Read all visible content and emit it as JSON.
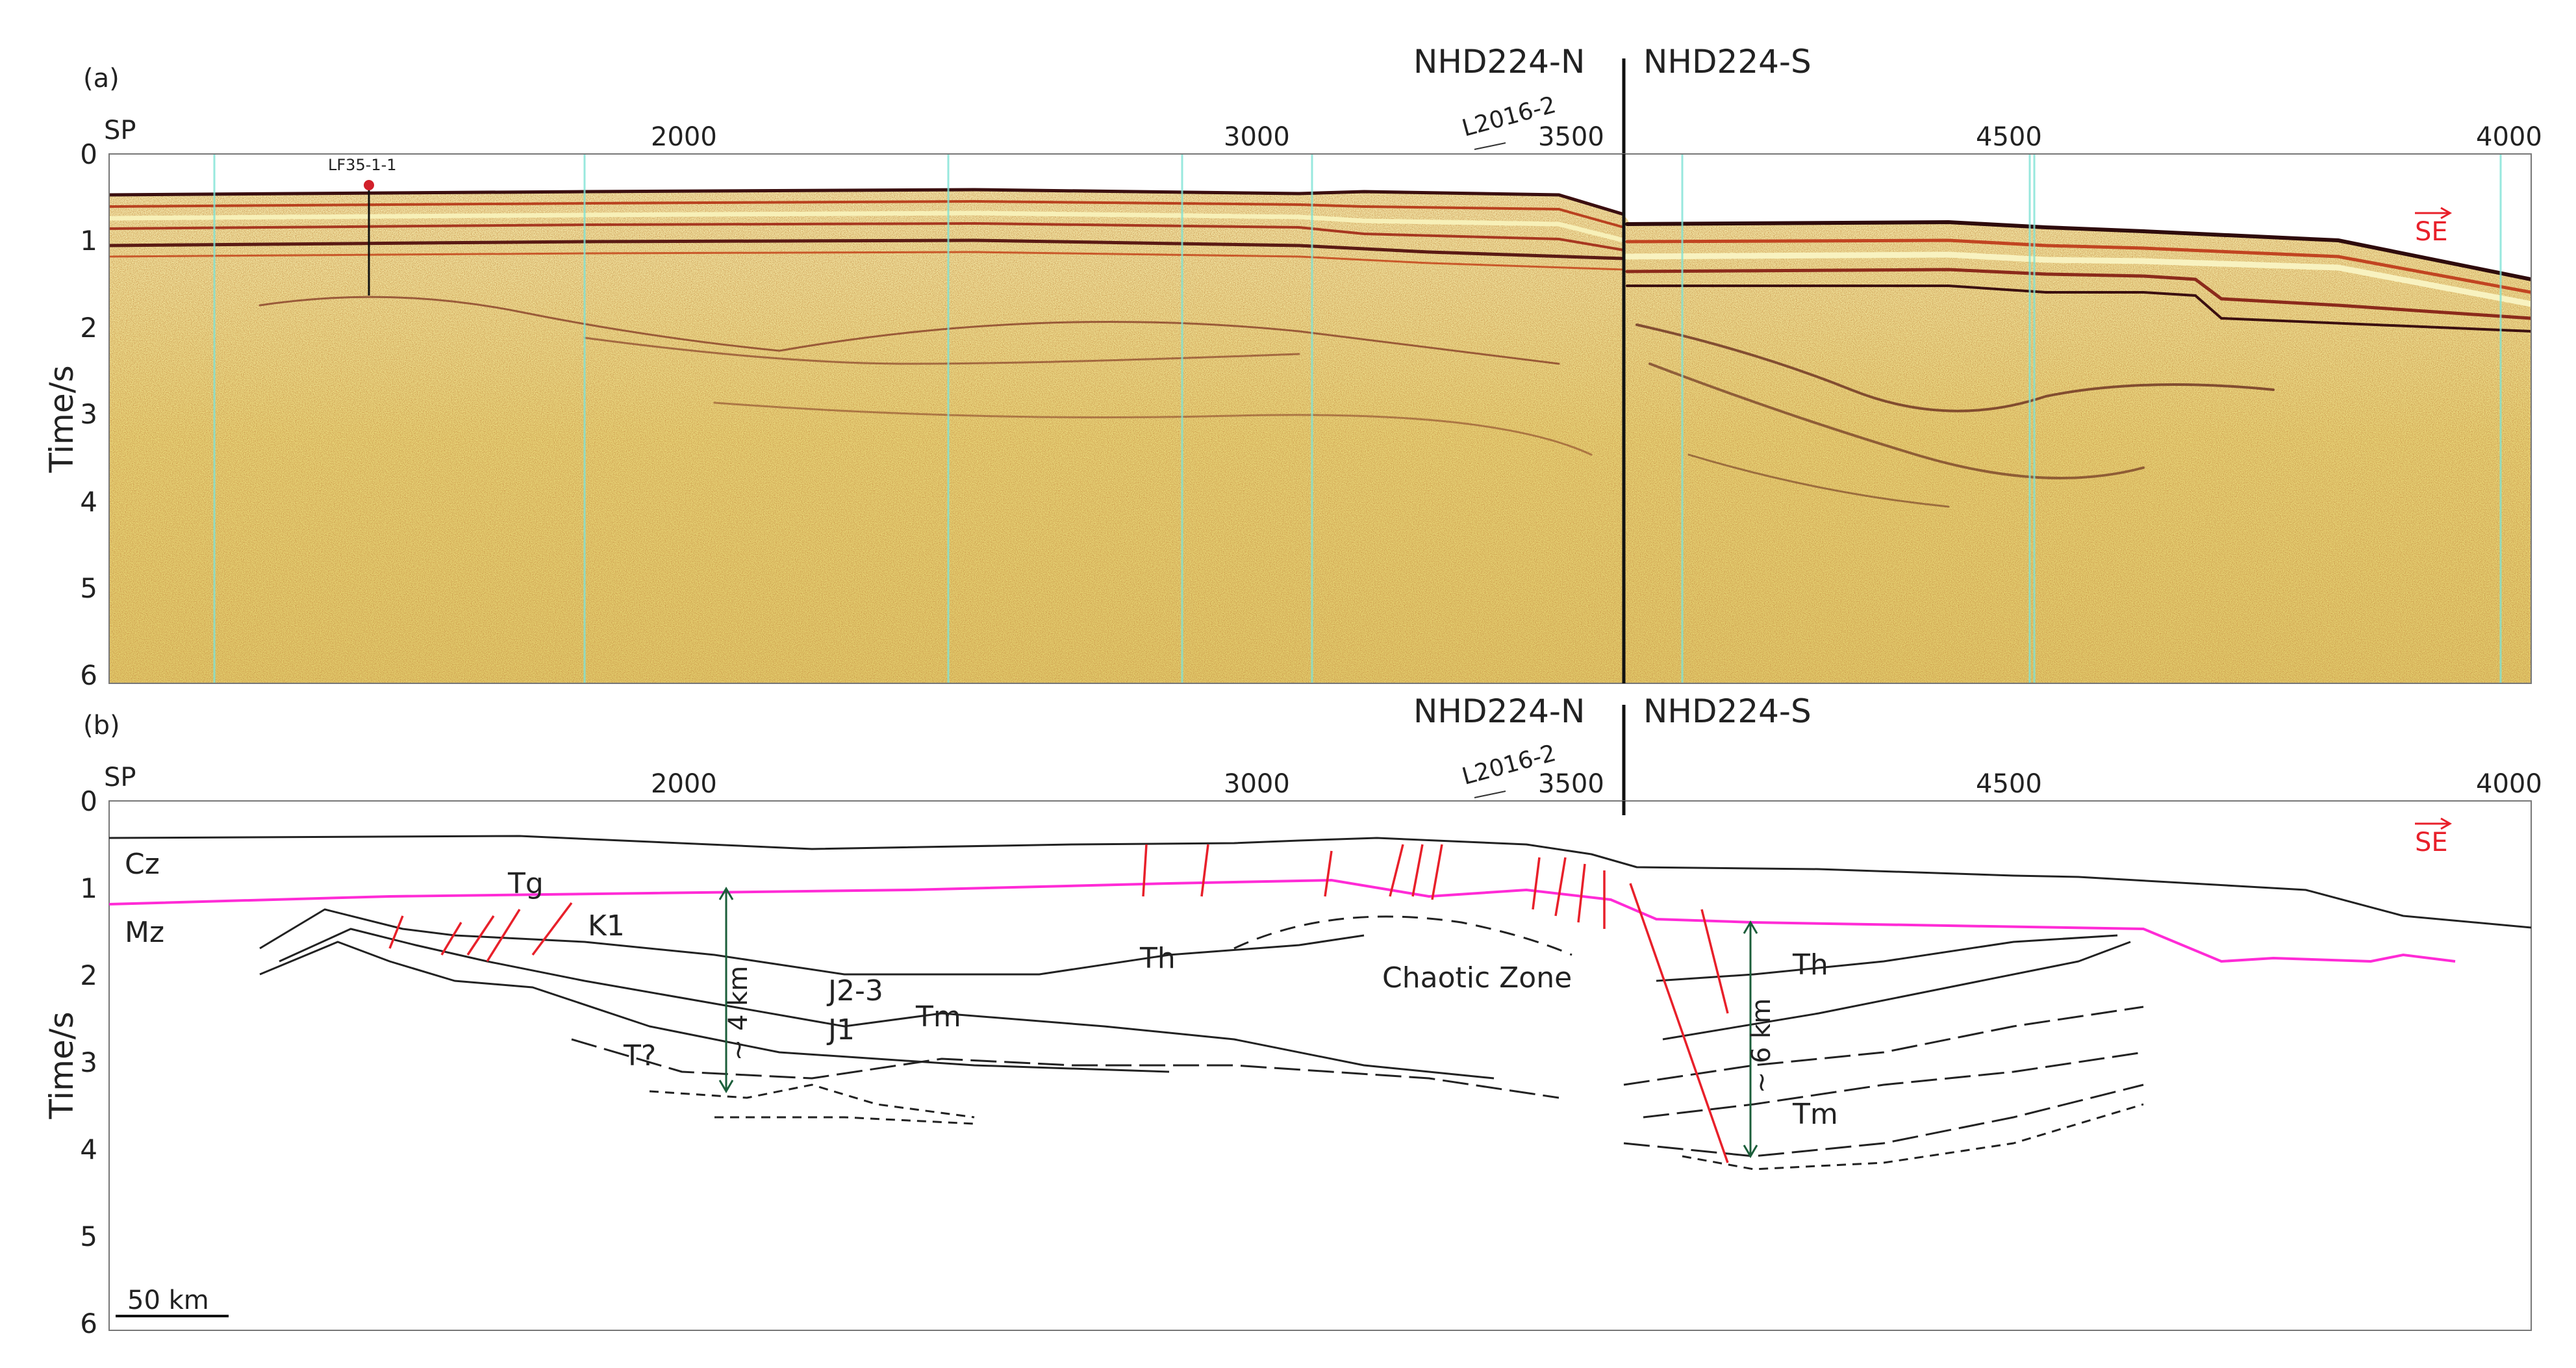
{
  "panels": [
    {
      "label": "(a)",
      "line_north": "NHD224-N",
      "line_south": "NHD224-S",
      "sp_label": "SP",
      "sp_ticks": [
        "2000",
        "3000",
        "3500",
        "4500",
        "4000"
      ],
      "crossing_line": "L2016-2",
      "y_title": "Time/s",
      "y_ticks": [
        "0",
        "1",
        "2",
        "3",
        "4",
        "5",
        "6"
      ],
      "direction": "SE",
      "well": "LF35-1-1"
    },
    {
      "label": "(b)",
      "line_north": "NHD224-N",
      "line_south": "NHD224-S",
      "sp_label": "SP",
      "sp_ticks": [
        "2000",
        "3000",
        "3500",
        "4500",
        "4000"
      ],
      "crossing_line": "L2016-2",
      "y_title": "Time/s",
      "y_ticks": [
        "0",
        "1",
        "2",
        "3",
        "4",
        "5",
        "6"
      ],
      "direction": "SE",
      "units": {
        "cz": "Cz",
        "mz": "Mz",
        "tg": "Tg",
        "k1": "K1",
        "th_left": "Th",
        "j23": "J2-3",
        "tm_left": "Tm",
        "j1": "J1",
        "t_q": "T?",
        "chaotic": "Chaotic Zone",
        "th_right": "Th",
        "tm_right": "Tm"
      },
      "thickness_left": "~ 4 km",
      "thickness_right": "~ 6 km",
      "scale_bar": "50 km"
    }
  ],
  "colors": {
    "seismic_base": "#e9d77a",
    "fault": "#e8202a",
    "tg_horizon": "#ff2bd6",
    "thickness_arrow": "#1b5e3a",
    "trace_marker": "#7fe3d6"
  }
}
